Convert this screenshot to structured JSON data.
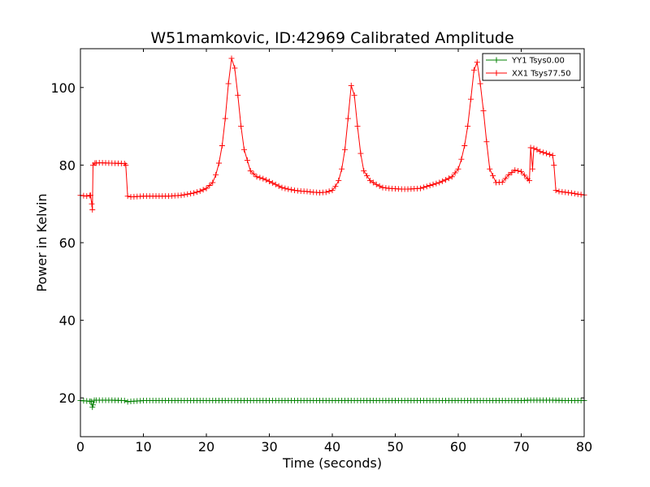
{
  "chart_data": {
    "type": "line",
    "title": "W51mamkovic, ID:42969 Calibrated Amplitude",
    "xlabel": "Time (seconds)",
    "ylabel": "Power in Kelvin",
    "xlim": [
      0,
      80
    ],
    "ylim": [
      10,
      110
    ],
    "xticks": [
      0,
      10,
      20,
      30,
      40,
      50,
      60,
      70,
      80
    ],
    "yticks": [
      20,
      40,
      60,
      80,
      100
    ],
    "xtick_labels": [
      "0",
      "10",
      "20",
      "30",
      "40",
      "50",
      "60",
      "70",
      "80"
    ],
    "ytick_labels": [
      "20",
      "40",
      "60",
      "80",
      "100"
    ],
    "grid": false,
    "legend_position": "top-right",
    "marker": "+",
    "series": [
      {
        "name": "YY1 Tsys0.00",
        "color": "#008000",
        "x": [
          0,
          1,
          1.7,
          1.9,
          2.2,
          3,
          5,
          7,
          7.5,
          8,
          9,
          10,
          11,
          12,
          20,
          30,
          40,
          50,
          60,
          70,
          71.5,
          73,
          75,
          77,
          79,
          80
        ],
        "y": [
          19.3,
          19.2,
          19.1,
          17.6,
          19.4,
          19.4,
          19.4,
          19.3,
          19.0,
          19.1,
          19.2,
          19.3,
          19.3,
          19.3,
          19.3,
          19.3,
          19.3,
          19.3,
          19.3,
          19.3,
          19.4,
          19.4,
          19.4,
          19.3,
          19.3,
          19.3
        ]
      },
      {
        "name": "XX1 Tsys77.50",
        "color": "#ff0000",
        "x": [
          0,
          1,
          1.6,
          1.8,
          1.9,
          2.0,
          2.3,
          3,
          5,
          7,
          7.2,
          7.5,
          8,
          10,
          12,
          14,
          16,
          17,
          18,
          19,
          20,
          21,
          21.5,
          22,
          22.5,
          23,
          23.5,
          24,
          24.5,
          25,
          25.5,
          26,
          27,
          28,
          29,
          30,
          31,
          32,
          33,
          34,
          35,
          36,
          37,
          38,
          39,
          40,
          40.5,
          41,
          41.5,
          42,
          42.5,
          43,
          43.5,
          44,
          44.5,
          45,
          46,
          47,
          48,
          49,
          50,
          51,
          52,
          53,
          54,
          55,
          56,
          57,
          58,
          59,
          60,
          60.5,
          61,
          61.5,
          62,
          62.5,
          63,
          63.5,
          64,
          64.5,
          65,
          66,
          67,
          68,
          69,
          70,
          71,
          71.3,
          71.5,
          71.8,
          72,
          72.5,
          73,
          74,
          75,
          75.2,
          75.5,
          76,
          77,
          78,
          79,
          80
        ],
        "y": [
          72.2,
          72.0,
          72.2,
          70.0,
          68.5,
          80.0,
          80.5,
          80.6,
          80.5,
          80.4,
          80.0,
          72.0,
          71.8,
          72.0,
          72.0,
          72.0,
          72.2,
          72.5,
          72.8,
          73.3,
          74.0,
          75.5,
          77.5,
          80.5,
          85.0,
          92.0,
          101.0,
          107.5,
          105.0,
          98.0,
          90.0,
          84.0,
          78.5,
          77.0,
          76.5,
          75.8,
          75.0,
          74.2,
          73.8,
          73.5,
          73.3,
          73.2,
          73.0,
          72.9,
          73.0,
          73.5,
          74.5,
          76.0,
          79.0,
          84.0,
          92.0,
          100.5,
          98.0,
          90.0,
          83.0,
          78.5,
          76.0,
          75.0,
          74.2,
          74.0,
          73.9,
          73.8,
          73.8,
          73.9,
          74.0,
          74.5,
          75.0,
          75.5,
          76.2,
          77.0,
          79.0,
          81.5,
          85.0,
          90.0,
          97.0,
          104.5,
          106.5,
          101.0,
          94.0,
          86.0,
          79.0,
          75.5,
          75.6,
          77.5,
          78.7,
          78.3,
          76.5,
          76.0,
          84.5,
          79.0,
          84.3,
          84.0,
          83.5,
          83.0,
          82.5,
          80.0,
          73.5,
          73.2,
          73.0,
          72.8,
          72.5,
          72.3
        ]
      }
    ]
  }
}
